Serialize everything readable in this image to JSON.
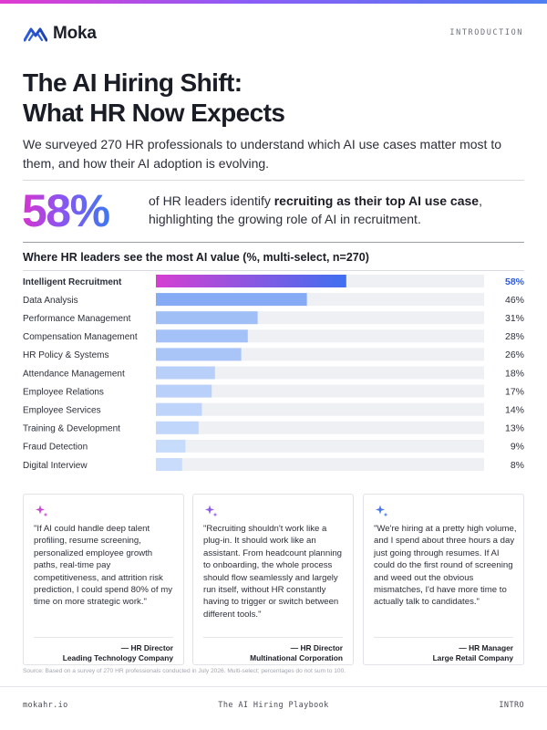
{
  "brand": {
    "name": "Moka"
  },
  "header": {
    "section": "INTRODUCTION"
  },
  "title": {
    "line1": "The AI Hiring Shift:",
    "line2": "What HR Now Expects"
  },
  "intro": "We surveyed 270 HR professionals to understand which AI use cases matter most to them, and how their AI adoption is evolving.",
  "stat": {
    "value": "58%",
    "text_before": "of HR leaders identify ",
    "text_bold": "recruiting as their top AI use case",
    "text_after": ", highlighting the growing role of AI in recruitment."
  },
  "chart_data": {
    "type": "bar",
    "orientation": "horizontal",
    "title": "Where HR leaders see the most AI value (%, multi-select, n=270)",
    "categories": [
      "Intelligent Recruitment",
      "Data Analysis",
      "Performance Management",
      "Compensation Management",
      "HR Policy & Systems",
      "Attendance Management",
      "Employee Relations",
      "Employee Services",
      "Training & Development",
      "Fraud Detection",
      "Digital Interview"
    ],
    "values": [
      58,
      46,
      31,
      28,
      26,
      18,
      17,
      14,
      13,
      9,
      8
    ],
    "value_labels": [
      "58%",
      "46%",
      "31%",
      "28%",
      "26%",
      "18%",
      "17%",
      "14%",
      "13%",
      "9%",
      "8%"
    ],
    "xlim": [
      0,
      100
    ],
    "grid": false,
    "highlight_index": 0,
    "colors": {
      "highlight_start": "#d53fd2",
      "highlight_end": "#3f6ff0",
      "bar_strong": "#6f9cf3",
      "bar_light": "#c9dcfb",
      "track": "#eef0f4",
      "highlight_label": "#2f5ad8",
      "label": "#2c2f3a"
    }
  },
  "quotes": [
    {
      "icon": "sparkle-icon",
      "color": "#c64ad0",
      "text": "\"If AI could handle deep talent profiling, resume screening, personalized employee growth paths, real-time pay competitiveness, and attrition risk prediction, I could spend 80% of my time on more strategic work.\"",
      "role": "— HR Director",
      "org": "Leading Technology Company"
    },
    {
      "icon": "sparkle-icon",
      "color": "#8a5cf0",
      "text": "\"Recruiting shouldn't work like a plug-in. It should work like an assistant. From headcount planning to onboarding, the whole process should flow seamlessly and largely run itself, without HR constantly having to trigger or switch between different tools.\"",
      "role": "— HR Director",
      "org": "Multinational Corporation"
    },
    {
      "icon": "sparkle-icon",
      "color": "#4a78e8",
      "text": "\"We're hiring at a pretty high volume, and I spend about three hours a day just going through resumes. If AI could do the first round of screening and weed out the obvious mismatches, I'd have more time to actually talk to candidates.\"",
      "role": "— HR Manager",
      "org": "Large Retail Company"
    }
  ],
  "source": "Source: Based on a survey of 270 HR professionals conducted in July 2026. Multi-select; percentages do not sum to 100.",
  "footer": {
    "left": "mokahr.io",
    "center": "The AI Hiring Playbook",
    "right": "INTRO"
  }
}
